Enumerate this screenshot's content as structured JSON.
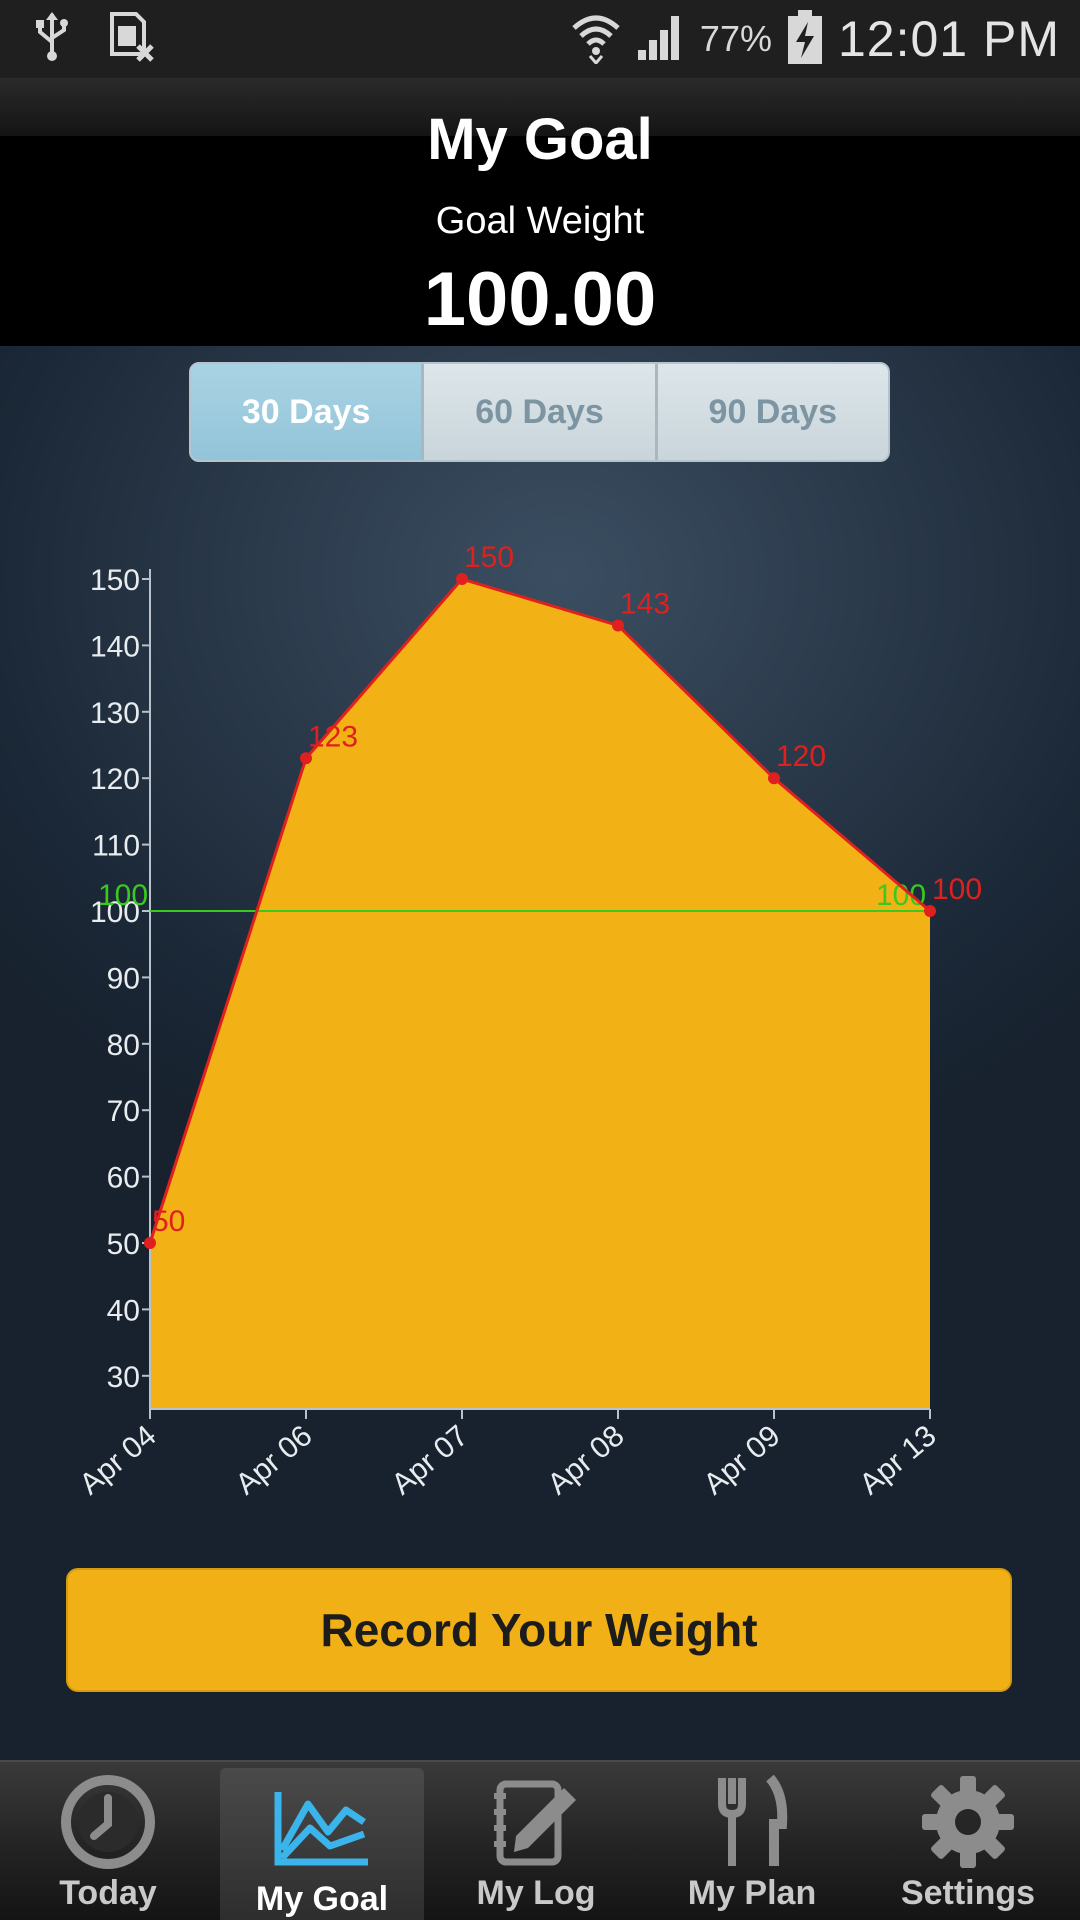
{
  "status_bar": {
    "icons_left": [
      "usb-icon",
      "sim-card-off-icon"
    ],
    "icons_right": [
      "wifi-icon",
      "signal-icon",
      "battery-charging-icon"
    ],
    "battery_percent": "77%",
    "time": "12:01 PM"
  },
  "header": {
    "title": "My Goal",
    "goal_label": "Goal Weight",
    "goal_value": "100.00"
  },
  "range_tabs": {
    "items": [
      "30 Days",
      "60 Days",
      "90 Days"
    ],
    "selected": "30 Days"
  },
  "chart_data": {
    "type": "area",
    "categories": [
      "Apr 04",
      "Apr 06",
      "Apr 07",
      "Apr 08",
      "Apr 09",
      "Apr 13"
    ],
    "series": [
      {
        "values": [
          50,
          123,
          150,
          143,
          120,
          100
        ],
        "color": "#e0201e",
        "fill": "#f2b216"
      }
    ],
    "goal_line": {
      "value": 100,
      "color": "#39c91f",
      "labels": [
        "100",
        "100"
      ]
    },
    "y_ticks": [
      30,
      40,
      50,
      60,
      70,
      80,
      90,
      100,
      110,
      120,
      130,
      140,
      150
    ],
    "ylim": [
      25,
      150
    ],
    "grid": false
  },
  "record_button": {
    "label": "Record Your Weight"
  },
  "bottom_nav": {
    "items": [
      {
        "label": "Today",
        "icon": "clock-icon"
      },
      {
        "label": "My Goal",
        "icon": "chart-icon",
        "active": true
      },
      {
        "label": "My Log",
        "icon": "notebook-pencil-icon"
      },
      {
        "label": "My Plan",
        "icon": "fork-knife-icon"
      },
      {
        "label": "Settings",
        "icon": "gear-icon"
      }
    ]
  }
}
